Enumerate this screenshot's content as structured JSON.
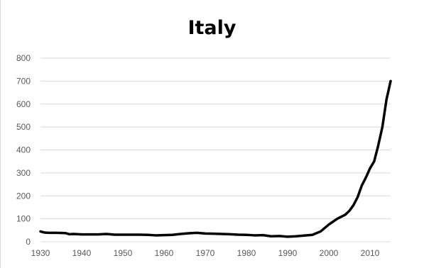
{
  "chart_data": {
    "type": "line",
    "title": "Italy",
    "xlabel": "",
    "ylabel": "",
    "xlim": [
      1930,
      2015
    ],
    "ylim": [
      0,
      800
    ],
    "grid": true,
    "legend": "none",
    "x_ticks": [
      "1930",
      "1940",
      "1950",
      "1960",
      "1970",
      "1980",
      "1990",
      "2000",
      "2010"
    ],
    "y_ticks": [
      "0",
      "100",
      "200",
      "300",
      "400",
      "500",
      "600",
      "700",
      "800"
    ],
    "line_color": "#000000",
    "series": [
      {
        "x": [
          1930,
          1931,
          1932,
          1934,
          1936,
          1937,
          1938,
          1940,
          1942,
          1944,
          1946,
          1948,
          1950,
          1952,
          1954,
          1956,
          1958,
          1960,
          1962,
          1964,
          1966,
          1968,
          1970,
          1972,
          1974,
          1976,
          1978,
          1980,
          1982,
          1984,
          1986,
          1988,
          1990,
          1992,
          1994,
          1996,
          1998,
          2000,
          2002,
          2004,
          2005,
          2006,
          2007,
          2008,
          2009,
          2010,
          2011,
          2012,
          2013,
          2014,
          2015
        ],
        "y": [
          45,
          40,
          39,
          39,
          38,
          33,
          34,
          32,
          32,
          32,
          34,
          31,
          31,
          31,
          31,
          30,
          28,
          29,
          30,
          34,
          37,
          39,
          36,
          35,
          34,
          33,
          31,
          30,
          28,
          29,
          24,
          25,
          22,
          24,
          27,
          30,
          45,
          75,
          100,
          118,
          135,
          160,
          195,
          245,
          280,
          320,
          350,
          420,
          500,
          620,
          700
        ]
      }
    ]
  }
}
